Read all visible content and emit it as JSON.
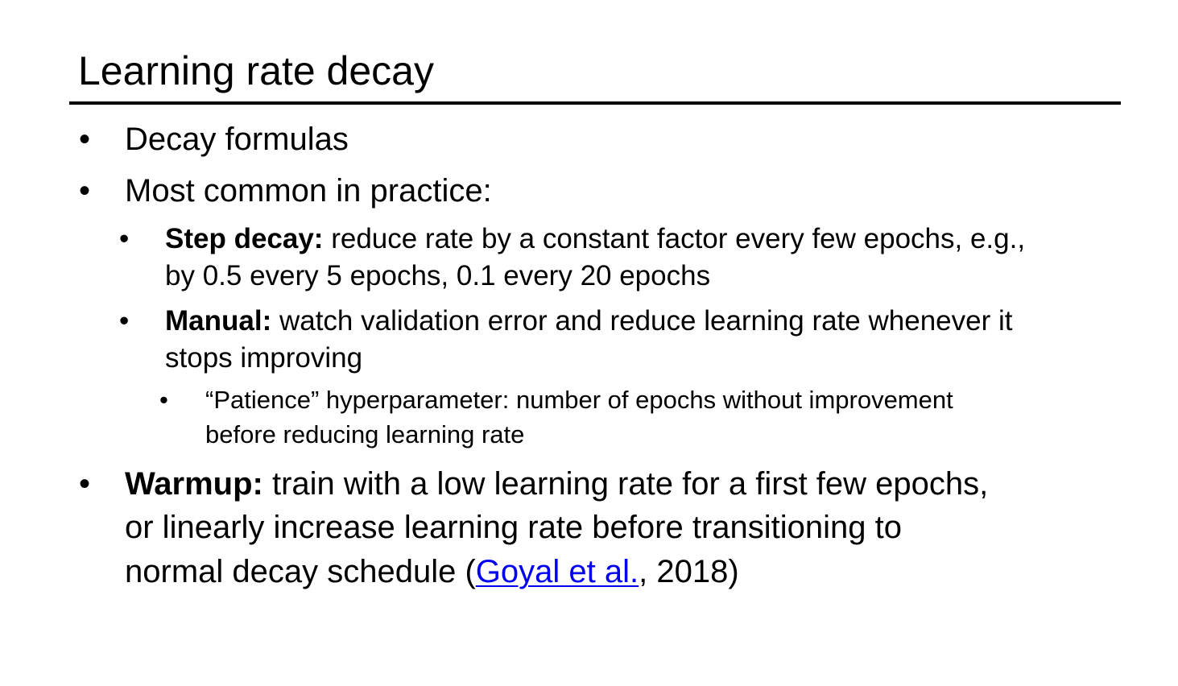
{
  "slide": {
    "title": "Learning rate decay",
    "bullets": {
      "b1": {
        "text": "Decay formulas"
      },
      "b2": {
        "text": "Most common in practice:"
      },
      "b2a": {
        "bold": "Step decay:",
        "line1": " reduce rate by a constant factor every few epochs, e.g.,",
        "line2": "by 0.5 every 5 epochs, 0.1 every 20 epochs"
      },
      "b2b": {
        "bold": "Manual:",
        "line1": " watch validation error and reduce learning rate whenever it",
        "line2": "stops improving"
      },
      "b2b1": {
        "line1": "“Patience” hyperparameter: number of epochs without improvement",
        "line2": "before reducing learning rate"
      },
      "b3": {
        "bold": "Warmup:",
        "line1": " train with a low learning rate for a first few epochs,",
        "line2": "or linearly increase learning rate before transitioning to",
        "line3_pre": "normal decay schedule (",
        "link": "Goyal et al.",
        "line3_post": ", 2018)"
      }
    },
    "bullet_glyph": "•",
    "link_color": "#0000ee"
  }
}
